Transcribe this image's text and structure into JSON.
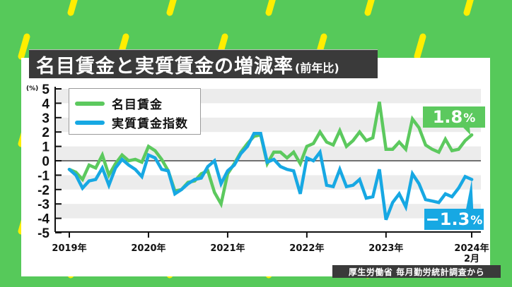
{
  "title": {
    "main": "名目賃金と実質賃金の増減率",
    "sub": "(前年比)"
  },
  "legend": [
    {
      "label": "名目賃金",
      "color": "#5cc95e"
    },
    {
      "label": "実質賃金指数",
      "color": "#17a8e3"
    }
  ],
  "callouts": {
    "nominal": {
      "value": "1.8",
      "unit": "%",
      "color": "#5cc95e"
    },
    "real": {
      "value": "−1.3",
      "unit": "%",
      "color": "#17a8e3"
    }
  },
  "y_unit": "(%)",
  "source": "厚生労働省 毎月勤労統計調査から",
  "colors": {
    "background": "#56c95a",
    "stripe": "#ffee00",
    "card": "#ffffff",
    "band": "#ececec",
    "title_bg": "#3a3a3a"
  },
  "chart_data": {
    "type": "line",
    "title": "名目賃金と実質賃金の増減率(前年比)",
    "xlabel": "",
    "ylabel": "(%)",
    "ylim": [
      -5,
      5
    ],
    "yticks": [
      5,
      4,
      3,
      2,
      1,
      0,
      -1,
      -2,
      -3,
      -4,
      -5
    ],
    "xticks": [
      "2019年",
      "2020年",
      "2021年",
      "2022年",
      "2023年",
      "2024年\n2月"
    ],
    "x_start": "2019-01",
    "x_end": "2024-02",
    "frequency": "monthly",
    "grid": "alternating horizontal bands",
    "legend_position": "upper left",
    "series": [
      {
        "name": "名目賃金",
        "color": "#5cc95e",
        "values": [
          -0.6,
          -0.8,
          -1.3,
          -0.3,
          -0.5,
          0.4,
          -1.0,
          -0.2,
          0.4,
          0.0,
          0.1,
          -0.1,
          1.0,
          0.7,
          0.1,
          -0.7,
          -2.1,
          -2.0,
          -1.5,
          -1.4,
          -0.9,
          -0.7,
          -2.2,
          -3.0,
          -0.9,
          -0.2,
          0.6,
          1.2,
          1.7,
          1.8,
          -0.2,
          0.6,
          0.6,
          0.2,
          0.6,
          -0.2,
          1.0,
          1.2,
          2.0,
          1.3,
          1.1,
          2.1,
          1.0,
          1.4,
          2.0,
          1.4,
          1.6,
          4.1,
          0.8,
          0.8,
          1.3,
          0.8,
          2.9,
          2.3,
          1.1,
          0.8,
          0.6,
          1.5,
          0.7,
          0.8,
          1.4,
          1.8
        ]
      },
      {
        "name": "実質賃金指数",
        "color": "#17a8e3",
        "values": [
          -0.6,
          -1.0,
          -1.9,
          -1.4,
          -1.3,
          -0.5,
          -1.7,
          -0.5,
          0.1,
          -0.3,
          -0.6,
          -1.1,
          0.4,
          0.2,
          -0.6,
          -0.7,
          -2.3,
          -2.0,
          -1.6,
          -1.3,
          -1.2,
          -0.4,
          0.0,
          -1.6,
          -0.7,
          -0.3,
          0.5,
          1.0,
          1.9,
          1.9,
          -0.1,
          0.1,
          -0.4,
          -0.6,
          -0.7,
          -2.3,
          0.2,
          0.0,
          0.6,
          -1.7,
          -1.8,
          -0.6,
          -1.8,
          -1.7,
          -1.3,
          -2.6,
          -2.5,
          -0.6,
          -4.1,
          -2.9,
          -2.3,
          -3.2,
          -0.9,
          -1.6,
          -2.7,
          -2.8,
          -2.9,
          -2.3,
          -2.5,
          -1.9,
          -1.1,
          -1.3
        ]
      }
    ],
    "annotations": [
      {
        "series": "名目賃金",
        "text": "1.8%",
        "at": "2024-02"
      },
      {
        "series": "実質賃金指数",
        "text": "−1.3%",
        "at": "2024-02"
      }
    ]
  }
}
